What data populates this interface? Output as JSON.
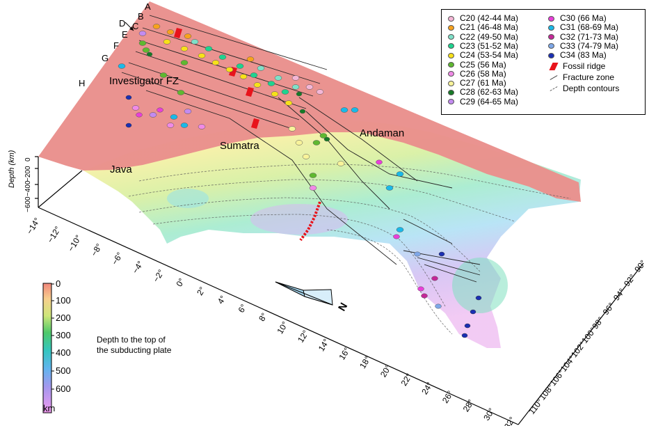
{
  "profile_labels": [
    "A",
    "B",
    "C",
    "D",
    "E",
    "F",
    "G",
    "H"
  ],
  "place_names": {
    "investigator": "Investigator FZ",
    "andaman": "Andaman",
    "sumatra": "Sumatra",
    "java": "Java"
  },
  "depth_axis": {
    "title": "Depth (km)",
    "ticks": [
      "0",
      "−200",
      "−400",
      "−600"
    ]
  },
  "lat_ticks": [
    "−14°",
    "−12°",
    "−10°",
    "−8°",
    "−6°",
    "−4°",
    "−2°",
    "0°",
    "2°",
    "4°",
    "6°",
    "8°",
    "10°",
    "12°",
    "14°",
    "16°",
    "18°",
    "20°",
    "22°",
    "24°",
    "26°",
    "28°",
    "30°",
    "32°"
  ],
  "lon_ticks": [
    "90°",
    "92°",
    "94°",
    "96°",
    "98°",
    "100°",
    "102°",
    "104°",
    "106°",
    "108°",
    "110°"
  ],
  "north_label": "N",
  "legend": {
    "chrons": [
      {
        "label": "C20 (42-44 Ma)",
        "color": "#f4b6d6"
      },
      {
        "label": "C21 (46-48 Ma)",
        "color": "#f7a21e"
      },
      {
        "label": "C22 (49-50 Ma)",
        "color": "#7fe0c8"
      },
      {
        "label": "C23 (51-52 Ma)",
        "color": "#1fd38f"
      },
      {
        "label": "C24 (53-54 Ma)",
        "color": "#f7e11a"
      },
      {
        "label": "C25 (56 Ma)",
        "color": "#5fb830"
      },
      {
        "label": "C26 (58 Ma)",
        "color": "#f08ae6"
      },
      {
        "label": "C27 (61 Ma)",
        "color": "#f8f39a"
      },
      {
        "label": "C28 (62-63 Ma)",
        "color": "#167a26"
      },
      {
        "label": "C29 (64-65 Ma)",
        "color": "#c38bf0"
      },
      {
        "label": "C30 (66 Ma)",
        "color": "#e93fd9"
      },
      {
        "label": "C31 (68-69 Ma)",
        "color": "#1ab9e8"
      },
      {
        "label": "C32 (71-73 Ma)",
        "color": "#c42898"
      },
      {
        "label": "C33 (74-79 Ma)",
        "color": "#7ea7e8"
      },
      {
        "label": "C34 (83 Ma)",
        "color": "#1a2fb4"
      }
    ],
    "fossil_ridge": "Fossil ridge",
    "fracture_zone": "Fracture zone",
    "depth_contours": "Depth contours"
  },
  "colorbar": {
    "ticks": [
      "0",
      "100",
      "200",
      "300",
      "400",
      "500",
      "600"
    ],
    "unit": "km",
    "caption_line1": "Depth to the top of",
    "caption_line2": "the subducting plate"
  }
}
